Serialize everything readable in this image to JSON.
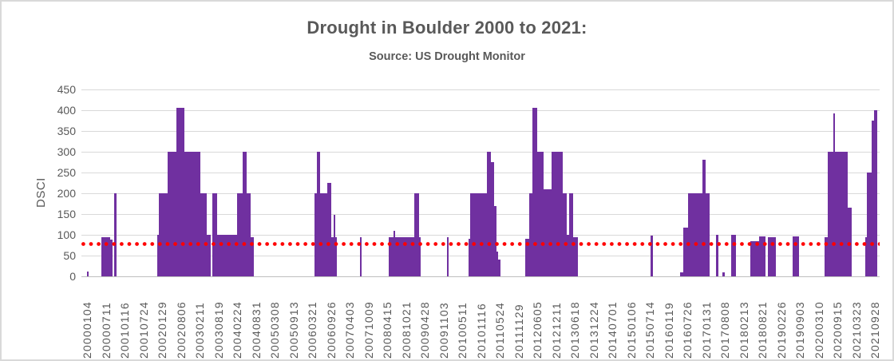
{
  "chart_data": {
    "type": "bar",
    "title": "Drought in Boulder 2000 to 2021:",
    "subtitle": "Source: US Drought Monitor",
    "ylabel": "DSCI",
    "ylim": [
      0,
      450
    ],
    "yticks": [
      0,
      50,
      100,
      150,
      200,
      250,
      300,
      350,
      400,
      450
    ],
    "grid": "horizontal-gridlines-on",
    "legend": "none",
    "bar_color": "#7030A0",
    "average_line": {
      "value": 78,
      "color": "#FF0000",
      "style": "dotted"
    },
    "x_axis": {
      "unit": "weekly observations",
      "label_every_n_weeks": 27,
      "total_weeks": 1140,
      "labels": [
        "20000104",
        "20000711",
        "20010116",
        "20010724",
        "20020129",
        "20020806",
        "20030211",
        "20030819",
        "20040224",
        "20040831",
        "20050308",
        "20050913",
        "20060321",
        "20060926",
        "20070403",
        "20071009",
        "20080415",
        "20081021",
        "20090428",
        "20091103",
        "20100511",
        "20101116",
        "20110524",
        "20111129",
        "20120605",
        "20121211",
        "20130618",
        "20131224",
        "20140701",
        "20150106",
        "20150714",
        "20160119",
        "20160726",
        "20170131",
        "20170808",
        "20180213",
        "20180821",
        "20190226",
        "20190903",
        "20200310",
        "20200915",
        "20210323",
        "20210928"
      ]
    },
    "segments_week_start_end_dsci": [
      [
        0,
        2,
        12
      ],
      [
        21,
        33,
        95
      ],
      [
        33,
        37,
        88
      ],
      [
        39,
        43,
        200
      ],
      [
        101,
        103,
        100
      ],
      [
        103,
        116,
        200
      ],
      [
        116,
        129,
        300
      ],
      [
        129,
        140,
        405
      ],
      [
        140,
        163,
        300
      ],
      [
        163,
        172,
        200
      ],
      [
        172,
        178,
        100
      ],
      [
        180,
        187,
        200
      ],
      [
        187,
        216,
        100
      ],
      [
        216,
        224,
        200
      ],
      [
        224,
        230,
        300
      ],
      [
        230,
        236,
        200
      ],
      [
        236,
        240,
        95
      ],
      [
        327,
        331,
        200
      ],
      [
        331,
        335,
        300
      ],
      [
        335,
        346,
        200
      ],
      [
        346,
        352,
        225
      ],
      [
        352,
        355,
        95
      ],
      [
        355,
        357,
        148
      ],
      [
        357,
        360,
        95
      ],
      [
        393,
        395,
        95
      ],
      [
        434,
        441,
        95
      ],
      [
        441,
        444,
        110
      ],
      [
        444,
        471,
        95
      ],
      [
        471,
        478,
        200
      ],
      [
        478,
        480,
        95
      ],
      [
        518,
        520,
        95
      ],
      [
        549,
        551,
        90
      ],
      [
        551,
        576,
        200
      ],
      [
        576,
        581,
        300
      ],
      [
        581,
        586,
        275
      ],
      [
        586,
        589,
        170
      ],
      [
        589,
        592,
        60
      ],
      [
        592,
        595,
        40
      ],
      [
        631,
        637,
        90
      ],
      [
        637,
        641,
        200
      ],
      [
        641,
        648,
        405
      ],
      [
        648,
        657,
        300
      ],
      [
        657,
        669,
        210
      ],
      [
        669,
        685,
        300
      ],
      [
        685,
        690,
        200
      ],
      [
        690,
        694,
        100
      ],
      [
        694,
        700,
        200
      ],
      [
        700,
        707,
        95
      ],
      [
        811,
        815,
        98
      ],
      [
        854,
        858,
        10
      ],
      [
        858,
        865,
        118
      ],
      [
        865,
        886,
        200
      ],
      [
        886,
        890,
        280
      ],
      [
        890,
        896,
        200
      ],
      [
        905,
        909,
        100
      ],
      [
        915,
        918,
        10
      ],
      [
        927,
        934,
        100
      ],
      [
        955,
        967,
        85
      ],
      [
        967,
        977,
        97
      ],
      [
        980,
        991,
        95
      ],
      [
        1016,
        1025,
        97
      ],
      [
        1062,
        1066,
        95
      ],
      [
        1066,
        1074,
        300
      ],
      [
        1074,
        1077,
        392
      ],
      [
        1077,
        1095,
        300
      ],
      [
        1095,
        1101,
        165
      ],
      [
        1120,
        1122,
        95
      ],
      [
        1122,
        1129,
        250
      ],
      [
        1129,
        1133,
        375
      ],
      [
        1133,
        1137,
        400
      ]
    ]
  }
}
